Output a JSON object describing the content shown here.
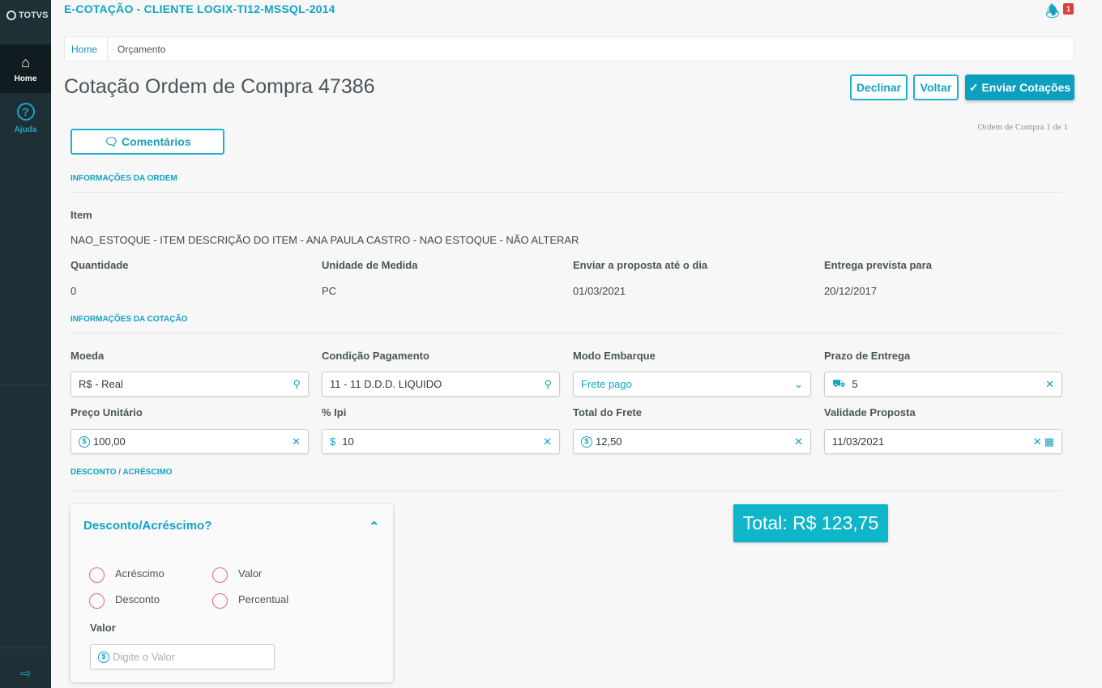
{
  "sidebar": {
    "logo": "TOTVS",
    "items": [
      {
        "label": "Home",
        "icon": "home-icon"
      },
      {
        "label": "Ajuda",
        "icon": "help-icon"
      }
    ],
    "collapse_icon": "menu-collapse-icon"
  },
  "header": {
    "app_title": "E-COTAÇÃO - CLIENTE LOGIX-TI12-MSSQL-2014",
    "notification_count": "1"
  },
  "breadcrumb": [
    "Home",
    "Orçamento"
  ],
  "page": {
    "title": "Cotação Ordem de Compra 47386",
    "pager": "Ordem de Compra 1 de 1"
  },
  "actions": {
    "decline": "Declinar",
    "back": "Voltar",
    "send": "Enviar Cotações",
    "comments": "Comentários"
  },
  "colors": {
    "accent": "#11a4c4",
    "sidebar": "#1e2f35",
    "total_bg": "#0fb5c8",
    "radio": "#e86a6a",
    "badge": "#e0403a"
  },
  "order_info": {
    "section": "INFORMAÇÕES DA ORDEM",
    "item_label": "Item",
    "item_value": "NAO_ESTOQUE - ITEM DESCRIÇÃO DO ITEM - ANA PAULA CASTRO - NAO ESTOQUE - NÃO ALTERAR",
    "fields": [
      {
        "label": "Quantidade",
        "value": "0"
      },
      {
        "label": "Unidade de Medida",
        "value": "PC"
      },
      {
        "label": "Enviar a proposta até o dia",
        "value": "01/03/2021"
      },
      {
        "label": "Entrega prevista para",
        "value": "20/12/2017"
      }
    ]
  },
  "quote_info": {
    "section": "INFORMAÇÕES DA COTAÇÃO",
    "fields": [
      {
        "label": "Moeda",
        "value": "R$ - Real"
      },
      {
        "label": "Condição Pagamento",
        "value": "11 - 11 D.D.D. LIQUIDO"
      },
      {
        "label": "Modo Embarque",
        "value": "Frete pago"
      },
      {
        "label": "Prazo de Entrega",
        "value": "5"
      },
      {
        "label": "Preço Unitário",
        "value": "100,00"
      },
      {
        "label": "% Ipi",
        "value": "10"
      },
      {
        "label": "Total do Frete",
        "value": "12,50"
      },
      {
        "label": "Validade Proposta",
        "value": "11/03/2021"
      }
    ]
  },
  "discount": {
    "section": "DESCONTO / ACRÉSCIMO",
    "panel_title": "Desconto/Acréscimo?",
    "options_type": [
      "Acréscimo",
      "Desconto"
    ],
    "options_mode": [
      "Valor",
      "Percentual"
    ],
    "value_label": "Valor",
    "value_placeholder": "Digite o Valor"
  },
  "total": "Total: R$ 123,75"
}
